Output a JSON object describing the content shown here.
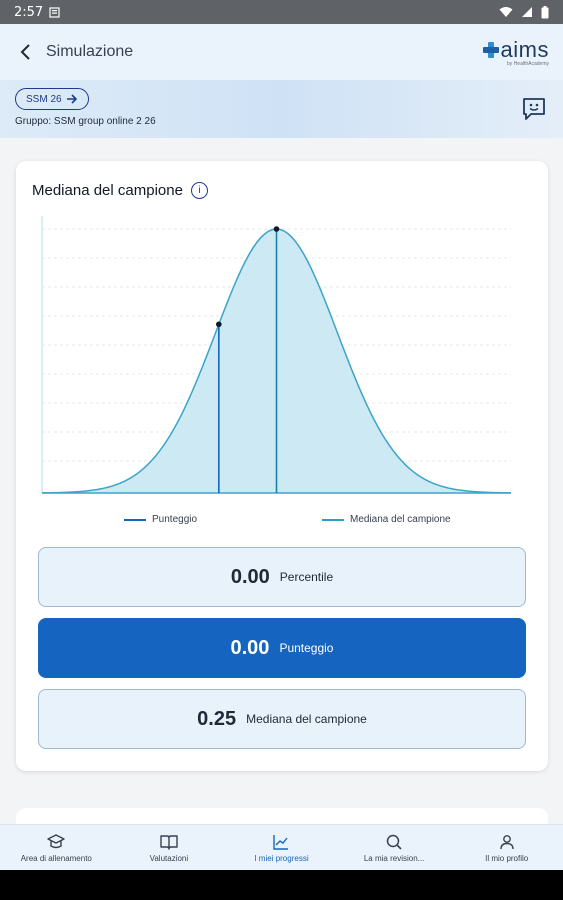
{
  "status_bar": {
    "time": "2:57"
  },
  "app_bar": {
    "title": "Simulazione",
    "logo_text": "aims",
    "logo_sub": "by HealthAcademy"
  },
  "context": {
    "chip_label": "SSM 26",
    "group": "Gruppo: SSM group online 2 26"
  },
  "card": {
    "title": "Mediana del campione",
    "legend": [
      {
        "label": "Punteggio",
        "color": "#1565c0"
      },
      {
        "label": "Mediana del campione",
        "color": "#2aa0c8"
      }
    ],
    "stats": [
      {
        "value": "0.00",
        "label": "Percentile"
      },
      {
        "value": "0.00",
        "label": "Punteggio"
      },
      {
        "value": "0.25",
        "label": "Mediana del campione"
      }
    ]
  },
  "chart_data": {
    "type": "area",
    "distribution": "normal",
    "x_range": [
      0,
      1
    ],
    "mean": 0.5,
    "sd": 0.13,
    "markers": [
      {
        "series": "Punteggio",
        "x": 0.377
      },
      {
        "series": "Mediana del campione",
        "x": 0.5
      }
    ],
    "grid": true,
    "fill_color": "#cde9f3",
    "line_color": "#3aa4c9"
  },
  "bottom_nav": [
    {
      "label": "Area di allenamento",
      "icon": "graduation-cap-icon",
      "active": false
    },
    {
      "label": "Valutazioni",
      "icon": "book-icon",
      "active": false
    },
    {
      "label": "I miei progressi",
      "icon": "chart-icon",
      "active": true
    },
    {
      "label": "La mia revision...",
      "icon": "search-icon",
      "active": false
    },
    {
      "label": "Il mio profilo",
      "icon": "person-icon",
      "active": false
    }
  ]
}
